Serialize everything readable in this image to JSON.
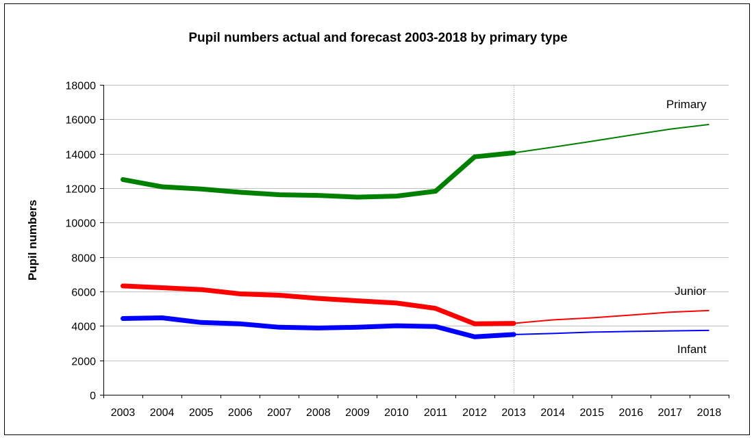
{
  "chart_data": {
    "type": "line",
    "title": "Pupil numbers actual and forecast 2003-2018 by primary type",
    "xlabel": "",
    "ylabel": "Pupil numbers",
    "ylim": [
      0,
      18000
    ],
    "yticks": [
      0,
      2000,
      4000,
      6000,
      8000,
      10000,
      12000,
      14000,
      16000,
      18000
    ],
    "categories": [
      "2003",
      "2004",
      "2005",
      "2006",
      "2007",
      "2008",
      "2009",
      "2010",
      "2011",
      "2012",
      "2013",
      "2014",
      "2015",
      "2016",
      "2017",
      "2018"
    ],
    "actual_through": "2013",
    "grid": "horizontal",
    "series": [
      {
        "name": "Primary",
        "color": "#008000",
        "values": [
          12500,
          12080,
          11950,
          11760,
          11620,
          11580,
          11480,
          11540,
          11820,
          13820,
          14050,
          14380,
          14720,
          15080,
          15430,
          15700
        ]
      },
      {
        "name": "Junior",
        "color": "#ff0000",
        "values": [
          6320,
          6220,
          6110,
          5860,
          5780,
          5600,
          5460,
          5330,
          5020,
          4120,
          4150,
          4350,
          4470,
          4630,
          4800,
          4890
        ]
      },
      {
        "name": "Infant",
        "color": "#0000ff",
        "values": [
          4430,
          4470,
          4200,
          4120,
          3920,
          3880,
          3920,
          4010,
          3960,
          3370,
          3500,
          3560,
          3640,
          3680,
          3710,
          3740
        ]
      }
    ]
  }
}
